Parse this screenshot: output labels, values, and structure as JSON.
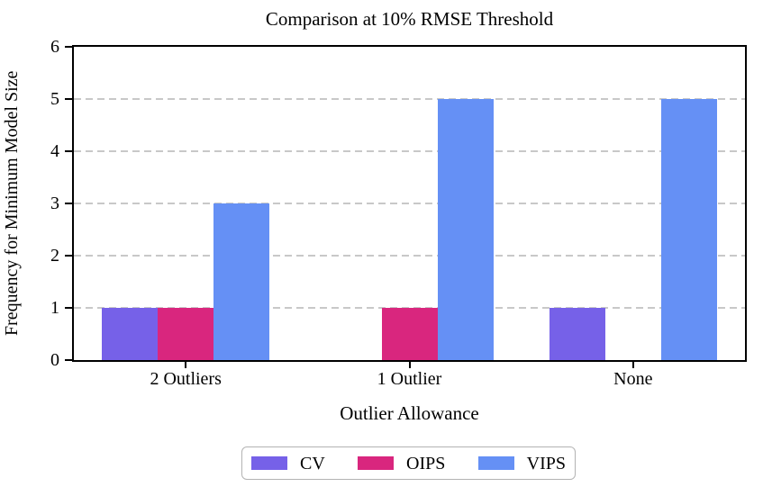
{
  "chart_data": {
    "type": "bar",
    "title": "Comparison at 10% RMSE Threshold",
    "xlabel": "Outlier Allowance",
    "ylabel": "Frequency for Minimum Model Size",
    "categories": [
      "2 Outliers",
      "1 Outlier",
      "None"
    ],
    "series": [
      {
        "name": "CV",
        "color": "#7661e8",
        "values": [
          1,
          0,
          1
        ]
      },
      {
        "name": "OIPS",
        "color": "#d9267e",
        "values": [
          1,
          1,
          0
        ]
      },
      {
        "name": "VIPS",
        "color": "#6590f5",
        "values": [
          3,
          5,
          5
        ]
      }
    ],
    "ylim": [
      0,
      6
    ],
    "yticks": [
      0,
      1,
      2,
      3,
      4,
      5,
      6
    ],
    "grid": "horizontal dashed at integer y values",
    "legend_position": "below chart, horizontal, boxed",
    "style": {
      "grid_color": "#c8c8c8",
      "spine_color": "#000000",
      "legend_border_color": "#b3b3b3",
      "background": "#ffffff"
    }
  }
}
